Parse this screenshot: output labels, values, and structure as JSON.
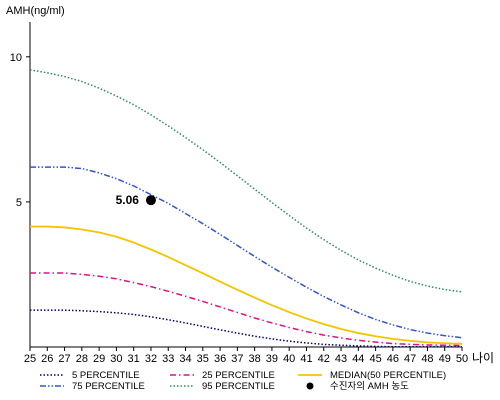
{
  "chart_data": {
    "type": "line",
    "ylabel": "AMH(ng/ml)",
    "xlabel": "나이",
    "xlim": [
      25,
      50
    ],
    "ylim": [
      0,
      11.2
    ],
    "x_ticks": [
      25,
      26,
      27,
      28,
      29,
      30,
      31,
      32,
      33,
      34,
      35,
      36,
      37,
      38,
      39,
      40,
      41,
      42,
      43,
      44,
      45,
      46,
      47,
      48,
      49,
      50
    ],
    "y_ticks": [
      5,
      10
    ],
    "grid": false,
    "legend_position": "bottom",
    "series": [
      {
        "name": "5 PERCENTILE",
        "color": "#000066",
        "dash": "dotted",
        "x": [
          25,
          26,
          27,
          28,
          29,
          30,
          31,
          32,
          33,
          34,
          35,
          36,
          37,
          38,
          39,
          40,
          41,
          42,
          43,
          44,
          45,
          46,
          47,
          48,
          49,
          50
        ],
        "y": [
          1.27,
          1.27,
          1.27,
          1.25,
          1.22,
          1.18,
          1.12,
          1.04,
          0.94,
          0.83,
          0.71,
          0.59,
          0.48,
          0.37,
          0.28,
          0.2,
          0.14,
          0.09,
          0.06,
          0.04,
          0.02,
          0.01,
          0.01,
          0.01,
          0.01,
          0.01
        ]
      },
      {
        "name": "75 PERCENTILE",
        "color": "#3355cc",
        "dash": "dashdotdot",
        "x": [
          25,
          26,
          27,
          28,
          29,
          30,
          31,
          32,
          33,
          34,
          35,
          36,
          37,
          38,
          39,
          40,
          41,
          42,
          43,
          44,
          45,
          46,
          47,
          48,
          49,
          50
        ],
        "y": [
          6.2,
          6.2,
          6.2,
          6.15,
          6.0,
          5.8,
          5.55,
          5.25,
          4.95,
          4.6,
          4.25,
          3.88,
          3.5,
          3.12,
          2.75,
          2.4,
          2.06,
          1.74,
          1.45,
          1.18,
          0.95,
          0.76,
          0.6,
          0.48,
          0.39,
          0.32
        ]
      },
      {
        "name": "25 PERCENTILE",
        "color": "#dd1188",
        "dash": "dashdot",
        "x": [
          25,
          26,
          27,
          28,
          29,
          30,
          31,
          32,
          33,
          34,
          35,
          36,
          37,
          38,
          39,
          40,
          41,
          42,
          43,
          44,
          45,
          46,
          47,
          48,
          49,
          50
        ],
        "y": [
          2.55,
          2.55,
          2.55,
          2.5,
          2.44,
          2.35,
          2.22,
          2.08,
          1.92,
          1.75,
          1.57,
          1.38,
          1.19,
          1.0,
          0.83,
          0.67,
          0.53,
          0.41,
          0.31,
          0.23,
          0.17,
          0.12,
          0.09,
          0.07,
          0.06,
          0.05
        ]
      },
      {
        "name": "95 PERCENTILE",
        "color": "#2e8b57",
        "dash": "dotted",
        "x": [
          25,
          26,
          27,
          28,
          29,
          30,
          31,
          32,
          33,
          34,
          35,
          36,
          37,
          38,
          39,
          40,
          41,
          42,
          43,
          44,
          45,
          46,
          47,
          48,
          49,
          50
        ],
        "y": [
          9.55,
          9.45,
          9.32,
          9.15,
          8.92,
          8.65,
          8.35,
          8.0,
          7.62,
          7.22,
          6.8,
          6.36,
          5.9,
          5.44,
          4.98,
          4.53,
          4.1,
          3.7,
          3.33,
          3.0,
          2.72,
          2.47,
          2.26,
          2.1,
          1.98,
          1.9
        ]
      },
      {
        "name": "MEDIAN(50 PERCENTILE)",
        "color": "#f5c400",
        "dash": "solid",
        "x": [
          25,
          26,
          27,
          28,
          29,
          30,
          31,
          32,
          33,
          34,
          35,
          36,
          37,
          38,
          39,
          40,
          41,
          42,
          43,
          44,
          45,
          46,
          47,
          48,
          49,
          50
        ],
        "y": [
          4.15,
          4.15,
          4.12,
          4.05,
          3.95,
          3.8,
          3.6,
          3.36,
          3.1,
          2.82,
          2.54,
          2.25,
          1.97,
          1.7,
          1.44,
          1.2,
          0.98,
          0.79,
          0.62,
          0.48,
          0.37,
          0.28,
          0.21,
          0.16,
          0.13,
          0.11
        ]
      }
    ],
    "marker": {
      "name": "수진자의 AMH 농도",
      "x": 32,
      "y": 5.06,
      "label": "5.06",
      "color": "#000000"
    },
    "legend_order": [
      "5 PERCENTILE",
      "25 PERCENTILE",
      "MEDIAN(50 PERCENTILE)",
      "75 PERCENTILE",
      "95 PERCENTILE",
      "수진자의 AMH 농도"
    ]
  }
}
